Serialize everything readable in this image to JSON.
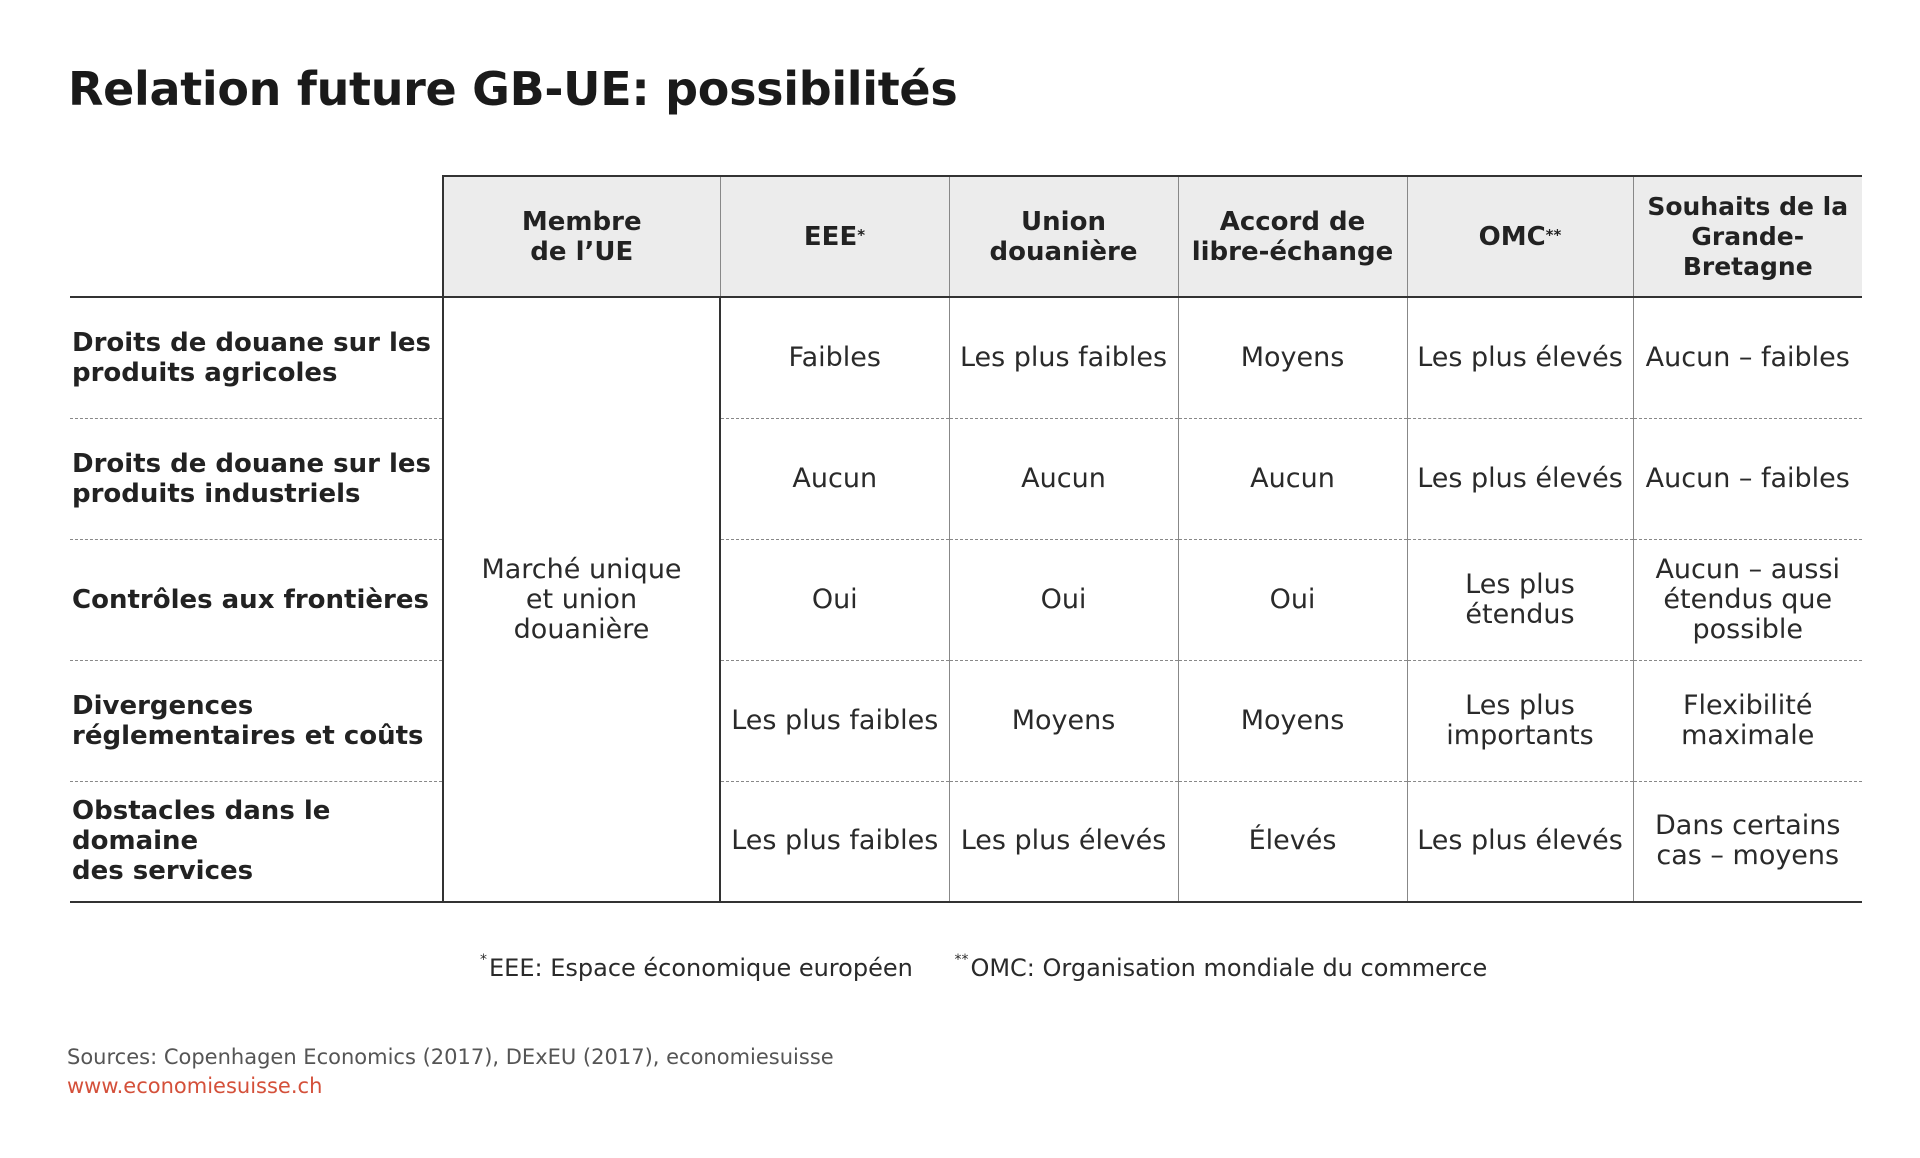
{
  "title": "Relation future GB-UE: possibilités",
  "columns": [
    {
      "line1": "Membre",
      "line2": "de l’UE",
      "mark": ""
    },
    {
      "line1": "EEE",
      "line2": "",
      "mark": "*"
    },
    {
      "line1": "Union",
      "line2": "douanière",
      "mark": ""
    },
    {
      "line1": "Accord de",
      "line2": "libre-échange",
      "mark": ""
    },
    {
      "line1": "OMC",
      "line2": "",
      "mark": "**"
    },
    {
      "line1": "Souhaits de la",
      "line2": "Grande-Bretagne",
      "mark": ""
    }
  ],
  "eu_member_cell": {
    "line1": "Marché unique",
    "line2": "et union",
    "line3": "douanière"
  },
  "rows": [
    {
      "label_line1": "Droits de douane sur les",
      "label_line2": "produits agricoles",
      "cells": [
        {
          "line1": "Faibles",
          "line2": "",
          "line3": ""
        },
        {
          "line1": "Les plus faibles",
          "line2": "",
          "line3": ""
        },
        {
          "line1": "Moyens",
          "line2": "",
          "line3": ""
        },
        {
          "line1": "Les plus élevés",
          "line2": "",
          "line3": ""
        },
        {
          "line1": "Aucun – faibles",
          "line2": "",
          "line3": ""
        }
      ]
    },
    {
      "label_line1": "Droits de douane sur les",
      "label_line2": "produits industriels",
      "cells": [
        {
          "line1": "Aucun",
          "line2": "",
          "line3": ""
        },
        {
          "line1": "Aucun",
          "line2": "",
          "line3": ""
        },
        {
          "line1": "Aucun",
          "line2": "",
          "line3": ""
        },
        {
          "line1": "Les plus élevés",
          "line2": "",
          "line3": ""
        },
        {
          "line1": "Aucun – faibles",
          "line2": "",
          "line3": ""
        }
      ]
    },
    {
      "label_line1": "Contrôles aux frontières",
      "label_line2": "",
      "cells": [
        {
          "line1": "Oui",
          "line2": "",
          "line3": ""
        },
        {
          "line1": "Oui",
          "line2": "",
          "line3": ""
        },
        {
          "line1": "Oui",
          "line2": "",
          "line3": ""
        },
        {
          "line1": "Les plus",
          "line2": "étendus",
          "line3": ""
        },
        {
          "line1": "Aucun – aussi",
          "line2": "étendus que",
          "line3": "possible"
        }
      ]
    },
    {
      "label_line1": "Divergences",
      "label_line2": "réglementaires et coûts",
      "cells": [
        {
          "line1": "Les plus faibles",
          "line2": "",
          "line3": ""
        },
        {
          "line1": "Moyens",
          "line2": "",
          "line3": ""
        },
        {
          "line1": "Moyens",
          "line2": "",
          "line3": ""
        },
        {
          "line1": "Les plus",
          "line2": "importants",
          "line3": ""
        },
        {
          "line1": "Flexibilité",
          "line2": "maximale",
          "line3": ""
        }
      ]
    },
    {
      "label_line1": "Obstacles dans le domaine",
      "label_line2": "des services",
      "cells": [
        {
          "line1": "Les plus faibles",
          "line2": "",
          "line3": ""
        },
        {
          "line1": "Les plus élevés",
          "line2": "",
          "line3": ""
        },
        {
          "line1": "Élevés",
          "line2": "",
          "line3": ""
        },
        {
          "line1": "Les plus élevés",
          "line2": "",
          "line3": ""
        },
        {
          "line1": "Dans certains",
          "line2": "cas – moyens",
          "line3": ""
        }
      ]
    }
  ],
  "footnotes": [
    {
      "mark": "*",
      "text": "EEE: Espace économique européen"
    },
    {
      "mark": "**",
      "text": "OMC: Organisation mondiale du commerce"
    }
  ],
  "sources": "Sources: Copenhagen Economics (2017), DExEU (2017), economiesuisse",
  "website": "www.economiesuisse.ch",
  "colors": {
    "header_background": "#ececec",
    "link_color": "#d4503a",
    "text": "#1a1a1a"
  }
}
